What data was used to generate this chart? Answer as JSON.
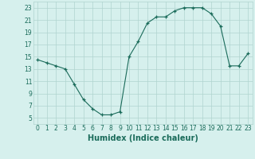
{
  "x": [
    0,
    1,
    2,
    3,
    4,
    5,
    6,
    7,
    8,
    9,
    10,
    11,
    12,
    13,
    14,
    15,
    16,
    17,
    18,
    19,
    20,
    21,
    22,
    23
  ],
  "y": [
    14.5,
    14.0,
    13.5,
    13.0,
    10.5,
    8.0,
    6.5,
    5.5,
    5.5,
    6.0,
    15.0,
    17.5,
    20.5,
    21.5,
    21.5,
    22.5,
    23.0,
    23.0,
    23.0,
    22.0,
    20.0,
    13.5,
    13.5,
    15.5
  ],
  "line_color": "#1a6b5a",
  "marker": "+",
  "bg_color": "#d6f0ed",
  "grid_color": "#b0d4cf",
  "xlabel": "Humidex (Indice chaleur)",
  "ylabel": "",
  "xlim": [
    -0.5,
    23.5
  ],
  "ylim": [
    4,
    24
  ],
  "xticks": [
    0,
    1,
    2,
    3,
    4,
    5,
    6,
    7,
    8,
    9,
    10,
    11,
    12,
    13,
    14,
    15,
    16,
    17,
    18,
    19,
    20,
    21,
    22,
    23
  ],
  "yticks": [
    5,
    7,
    9,
    11,
    13,
    15,
    17,
    19,
    21,
    23
  ],
  "axis_fontsize": 6.5,
  "tick_fontsize": 5.5,
  "xlabel_fontsize": 7.0
}
